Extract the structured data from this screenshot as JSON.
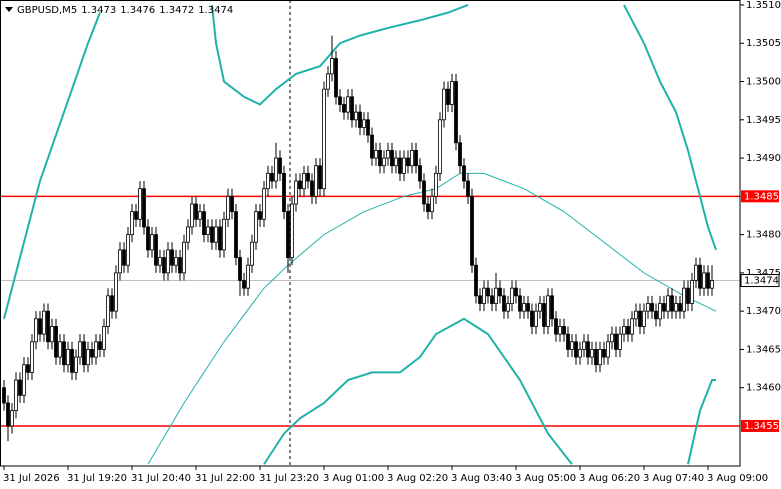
{
  "chart_data": {
    "type": "candlestick",
    "symbol": "GBPUSD,M5",
    "ohlc": [
      1.3473,
      1.3476,
      1.3472,
      1.3474
    ],
    "ylim": [
      1.344977,
      1.351065
    ],
    "yticks": [
      {
        "value": 1.351,
        "label": "1.3510"
      },
      1.3505,
      {
        "value": 1.35,
        "label": "1.3500"
      },
      1.3495,
      {
        "value": 1.349,
        "label": "1.3490"
      },
      {
        "value": 1.348,
        "label": "1.3480"
      },
      1.3475,
      {
        "value": 1.347,
        "label": "1.3470"
      },
      1.3465,
      {
        "value": 1.346,
        "label": "1.3460"
      }
    ],
    "hlines": [
      {
        "value": 1.3485,
        "color": "#ff0000"
      },
      {
        "value": 1.3455,
        "color": "#ff0000"
      }
    ],
    "bid": 1.3474,
    "categories": [
      "31 Jul 2026",
      null,
      null,
      null,
      null,
      null,
      null,
      null,
      null,
      null,
      null,
      null,
      null,
      null,
      null,
      null,
      "31 Jul 19:20",
      null,
      null,
      null,
      null,
      null,
      null,
      null,
      null,
      null,
      null,
      null,
      null,
      null,
      null,
      null,
      "31 Jul 20:40",
      null,
      null,
      null,
      null,
      null,
      null,
      null,
      null,
      null,
      null,
      null,
      null,
      null,
      null,
      null,
      "31 Jul 22:00",
      null,
      null,
      null,
      null,
      null,
      null,
      null,
      null,
      null,
      null,
      null,
      null,
      null,
      null,
      null,
      "31 Jul 23:20",
      null,
      null,
      null,
      null,
      null,
      null,
      null,
      null,
      null,
      null,
      null,
      null,
      null,
      null,
      null,
      "3 Aug 01:00",
      null,
      null,
      null,
      null,
      null,
      null,
      null,
      null,
      null,
      null,
      null,
      null,
      null,
      null,
      null,
      "3 Aug 02:20",
      null,
      null,
      null,
      null,
      null,
      null,
      null,
      null,
      null,
      null,
      null,
      null,
      null,
      null,
      null,
      "3 Aug 03:40",
      null,
      null,
      null,
      null,
      null,
      null,
      null,
      null,
      null,
      null,
      null,
      null,
      null,
      null,
      null,
      "3 Aug 05:00",
      null,
      null,
      null,
      null,
      null,
      null,
      null,
      null,
      null,
      null,
      null,
      null,
      null,
      null,
      null,
      "3 Aug 06:20",
      null,
      null,
      null,
      null,
      null,
      null,
      null,
      null,
      null,
      null,
      null,
      null,
      null,
      null,
      null,
      "3 Aug 07:40",
      null,
      null,
      null,
      null,
      null,
      null,
      null,
      null,
      null,
      null,
      null,
      null,
      null,
      null,
      null,
      "3 Aug 09:00",
      null
    ],
    "bull_color": "#ffffff",
    "bear_color": "#000000",
    "open": [
      1.346,
      1.3458,
      1.3455,
      1.3457,
      1.3461,
      1.3459,
      1.3463,
      1.3462,
      1.3466,
      1.3469,
      1.3467,
      1.347,
      1.3466,
      1.3468,
      1.3464,
      1.3466,
      1.3463,
      1.3465,
      1.3462,
      1.3464,
      1.3466,
      1.3463,
      1.3465,
      1.3464,
      1.3466,
      1.3465,
      1.3468,
      1.3472,
      1.347,
      1.3475,
      1.3478,
      1.3476,
      1.348,
      1.3483,
      1.3482,
      1.3486,
      1.3481,
      1.3478,
      1.348,
      1.3476,
      1.3477,
      1.3475,
      1.3478,
      1.3476,
      1.3477,
      1.3475,
      1.3479,
      1.3481,
      1.3484,
      1.3482,
      1.3483,
      1.348,
      1.3481,
      1.3479,
      1.3481,
      1.3478,
      1.3482,
      1.3485,
      1.3483,
      1.3477,
      1.3474,
      1.3473,
      1.3476,
      1.3479,
      1.3483,
      1.3482,
      1.3486,
      1.3488,
      1.3487,
      1.349,
      1.3488,
      1.3483,
      1.3477,
      1.3484,
      1.3487,
      1.3486,
      1.3488,
      1.3487,
      1.3485,
      1.3489,
      1.3486,
      1.3499,
      1.3501,
      1.3503,
      1.3498,
      1.3497,
      1.3496,
      1.3498,
      1.3495,
      1.3496,
      1.3494,
      1.3495,
      1.3493,
      1.349,
      1.3491,
      1.3489,
      1.349,
      1.3491,
      1.3489,
      1.349,
      1.3488,
      1.349,
      1.3489,
      1.3491,
      1.3489,
      1.3487,
      1.3484,
      1.3483,
      1.3485,
      1.3488,
      1.3495,
      1.3499,
      1.3497,
      1.35,
      1.3492,
      1.3489,
      1.3487,
      1.3485,
      1.3476,
      1.3472,
      1.3471,
      1.3473,
      1.3472,
      1.3471,
      1.3473,
      1.3472,
      1.347,
      1.3471,
      1.3473,
      1.3472,
      1.347,
      1.3471,
      1.347,
      1.3468,
      1.347,
      1.3471,
      1.3468,
      1.3472,
      1.3469,
      1.3467,
      1.3468,
      1.3467,
      1.3465,
      1.3466,
      1.3464,
      1.3465,
      1.3466,
      1.3464,
      1.3465,
      1.3463,
      1.3465,
      1.3464,
      1.3466,
      1.3467,
      1.3465,
      1.3467,
      1.3468,
      1.3467,
      1.3469,
      1.347,
      1.3468,
      1.347,
      1.3471,
      1.347,
      1.3469,
      1.3471,
      1.347,
      1.3472,
      1.347,
      1.3471,
      1.347,
      1.3473,
      1.3471,
      1.3474,
      1.3476,
      1.3473,
      1.3475,
      1.3473
    ],
    "high": [
      1.3461,
      1.3459,
      1.3458,
      1.3462,
      1.3462,
      1.3464,
      1.3464,
      1.3467,
      1.347,
      1.347,
      1.3471,
      1.3471,
      1.3469,
      1.3469,
      1.3467,
      1.3467,
      1.3466,
      1.3466,
      1.3465,
      1.3467,
      1.3467,
      1.3466,
      1.3466,
      1.3467,
      1.3467,
      1.3469,
      1.3473,
      1.3473,
      1.3476,
      1.3479,
      1.3479,
      1.3481,
      1.3484,
      1.3484,
      1.3487,
      1.3487,
      1.3482,
      1.3481,
      1.3481,
      1.3478,
      1.3478,
      1.3479,
      1.3479,
      1.3478,
      1.3478,
      1.348,
      1.3482,
      1.3485,
      1.3485,
      1.3484,
      1.3484,
      1.3482,
      1.3482,
      1.3482,
      1.3482,
      1.3483,
      1.3486,
      1.3486,
      1.3484,
      1.3478,
      1.3475,
      1.3477,
      1.348,
      1.3484,
      1.3484,
      1.3487,
      1.3489,
      1.3489,
      1.3492,
      1.3491,
      1.3489,
      1.3484,
      1.3485,
      1.3488,
      1.3488,
      1.3489,
      1.3489,
      1.3488,
      1.349,
      1.349,
      1.35,
      1.3502,
      1.3506,
      1.3504,
      1.3499,
      1.3498,
      1.3499,
      1.3499,
      1.3497,
      1.3497,
      1.3496,
      1.3496,
      1.3494,
      1.3492,
      1.3492,
      1.3491,
      1.3492,
      1.3492,
      1.3491,
      1.3491,
      1.3491,
      1.3491,
      1.3492,
      1.3492,
      1.349,
      1.3488,
      1.3485,
      1.3486,
      1.3489,
      1.3496,
      1.35,
      1.35,
      1.3501,
      1.3501,
      1.3493,
      1.349,
      1.3488,
      1.3486,
      1.3477,
      1.3473,
      1.3474,
      1.3474,
      1.3473,
      1.3475,
      1.3474,
      1.3473,
      1.3472,
      1.3474,
      1.3474,
      1.3473,
      1.3472,
      1.3472,
      1.3471,
      1.3471,
      1.3472,
      1.3472,
      1.3473,
      1.3473,
      1.347,
      1.3469,
      1.3469,
      1.3468,
      1.3467,
      1.3467,
      1.3466,
      1.3467,
      1.3467,
      1.3466,
      1.3466,
      1.3466,
      1.3466,
      1.3467,
      1.3468,
      1.3468,
      1.3468,
      1.3469,
      1.3469,
      1.347,
      1.3471,
      1.3471,
      1.3471,
      1.3472,
      1.3472,
      1.3471,
      1.3472,
      1.3472,
      1.3473,
      1.3473,
      1.3472,
      1.3472,
      1.3474,
      1.3474,
      1.3475,
      1.3477,
      1.3477,
      1.3476,
      1.3476,
      1.3476
    ],
    "low": [
      1.3457,
      1.3453,
      1.3454,
      1.3456,
      1.3458,
      1.3458,
      1.3461,
      1.3461,
      1.3465,
      1.3466,
      1.3466,
      1.3465,
      1.3465,
      1.3463,
      1.3463,
      1.3462,
      1.3462,
      1.3461,
      1.3461,
      1.3463,
      1.3462,
      1.3462,
      1.3463,
      1.3463,
      1.3464,
      1.3464,
      1.3467,
      1.3469,
      1.3469,
      1.3474,
      1.3475,
      1.3475,
      1.3479,
      1.3481,
      1.3481,
      1.348,
      1.3477,
      1.3477,
      1.3475,
      1.3475,
      1.3474,
      1.3474,
      1.3475,
      1.3475,
      1.3474,
      1.3474,
      1.3478,
      1.348,
      1.3481,
      1.3481,
      1.3479,
      1.3479,
      1.3478,
      1.3478,
      1.3477,
      1.3477,
      1.3481,
      1.3482,
      1.3476,
      1.3472,
      1.3472,
      1.3472,
      1.3475,
      1.3478,
      1.3481,
      1.3481,
      1.3485,
      1.3486,
      1.3486,
      1.3487,
      1.3482,
      1.3475,
      1.3476,
      1.3483,
      1.3485,
      1.3485,
      1.3486,
      1.3484,
      1.3484,
      1.3485,
      1.3485,
      1.3498,
      1.35,
      1.3497,
      1.3496,
      1.3495,
      1.3495,
      1.3494,
      1.3494,
      1.3493,
      1.3493,
      1.3492,
      1.3489,
      1.3489,
      1.3488,
      1.3488,
      1.3489,
      1.3488,
      1.3488,
      1.3487,
      1.3487,
      1.3488,
      1.3488,
      1.3488,
      1.3486,
      1.3483,
      1.3482,
      1.3482,
      1.3484,
      1.3487,
      1.3494,
      1.3496,
      1.3496,
      1.3491,
      1.3488,
      1.3486,
      1.3484,
      1.3475,
      1.3471,
      1.347,
      1.347,
      1.3471,
      1.347,
      1.347,
      1.3471,
      1.3469,
      1.3469,
      1.347,
      1.3471,
      1.3469,
      1.3469,
      1.3469,
      1.3467,
      1.3467,
      1.3469,
      1.3467,
      1.3467,
      1.3468,
      1.3466,
      1.3466,
      1.3466,
      1.3464,
      1.3464,
      1.3463,
      1.3463,
      1.3464,
      1.3463,
      1.3463,
      1.3462,
      1.3462,
      1.3463,
      1.3463,
      1.3465,
      1.3464,
      1.3464,
      1.3466,
      1.3466,
      1.3466,
      1.3468,
      1.3467,
      1.3467,
      1.3469,
      1.3469,
      1.3468,
      1.3468,
      1.3469,
      1.3469,
      1.3469,
      1.3469,
      1.3469,
      1.3469,
      1.347,
      1.347,
      1.3473,
      1.3472,
      1.3472,
      1.3472,
      1.3472
    ],
    "close": [
      1.3458,
      1.3455,
      1.3457,
      1.3461,
      1.3459,
      1.3463,
      1.3462,
      1.3466,
      1.3469,
      1.3467,
      1.347,
      1.3466,
      1.3468,
      1.3464,
      1.3466,
      1.3463,
      1.3465,
      1.3462,
      1.3464,
      1.3466,
      1.3463,
      1.3465,
      1.3464,
      1.3466,
      1.3465,
      1.3468,
      1.3472,
      1.347,
      1.3475,
      1.3478,
      1.3476,
      1.348,
      1.3483,
      1.3482,
      1.3486,
      1.3481,
      1.3478,
      1.348,
      1.3476,
      1.3477,
      1.3475,
      1.3478,
      1.3476,
      1.3477,
      1.3475,
      1.3479,
      1.3481,
      1.3484,
      1.3482,
      1.3483,
      1.348,
      1.3481,
      1.3479,
      1.3481,
      1.3478,
      1.3482,
      1.3485,
      1.3483,
      1.3477,
      1.3474,
      1.3473,
      1.3476,
      1.3479,
      1.3483,
      1.3482,
      1.3486,
      1.3488,
      1.3487,
      1.349,
      1.3488,
      1.3483,
      1.3477,
      1.3484,
      1.3487,
      1.3486,
      1.3488,
      1.3487,
      1.3485,
      1.3489,
      1.3486,
      1.3499,
      1.3501,
      1.3503,
      1.3498,
      1.3497,
      1.3496,
      1.3498,
      1.3495,
      1.3496,
      1.3494,
      1.3495,
      1.3493,
      1.349,
      1.3491,
      1.3489,
      1.349,
      1.3491,
      1.3489,
      1.349,
      1.3488,
      1.349,
      1.3489,
      1.3491,
      1.3489,
      1.3487,
      1.3484,
      1.3483,
      1.3485,
      1.3488,
      1.3495,
      1.3499,
      1.3497,
      1.35,
      1.3492,
      1.3489,
      1.3487,
      1.3485,
      1.3476,
      1.3472,
      1.3471,
      1.3473,
      1.3472,
      1.3471,
      1.3473,
      1.3472,
      1.347,
      1.3471,
      1.3473,
      1.3472,
      1.347,
      1.3471,
      1.347,
      1.3468,
      1.347,
      1.3471,
      1.3468,
      1.3472,
      1.3469,
      1.3467,
      1.3468,
      1.3467,
      1.3465,
      1.3466,
      1.3464,
      1.3465,
      1.3466,
      1.3464,
      1.3465,
      1.3463,
      1.3465,
      1.3464,
      1.3466,
      1.3467,
      1.3465,
      1.3467,
      1.3468,
      1.3467,
      1.3469,
      1.347,
      1.3468,
      1.347,
      1.3471,
      1.347,
      1.3469,
      1.3471,
      1.347,
      1.3472,
      1.347,
      1.3471,
      1.347,
      1.3473,
      1.3471,
      1.3474,
      1.3476,
      1.3473,
      1.3475,
      1.3473,
      1.3474
    ],
    "indicators": [
      {
        "color": "#20b2aa",
        "width": 2,
        "x": [
          0,
          5,
          9,
          13,
          17,
          21,
          24,
          26,
          52,
          53,
          55,
          60,
          64,
          68,
          73,
          79,
          84,
          89,
          96,
          104,
          111,
          116,
          120,
          155,
          157,
          160,
          164,
          168,
          171,
          174,
          176,
          178
        ],
        "values": [
          1.3469,
          1.3479,
          1.3487,
          1.3493,
          1.3499,
          1.3505,
          1.3509,
          null,
          1.351,
          1.3505,
          1.35,
          1.3498,
          1.3497,
          1.3499,
          1.3501,
          1.3502,
          1.3505,
          1.3506,
          1.3507,
          1.3508,
          1.3509,
          1.351,
          null,
          1.351,
          1.3508,
          1.3505,
          1.35,
          1.3496,
          1.3491,
          1.3485,
          1.3481,
          1.3478
        ]
      },
      {
        "color": "#20b2aa",
        "width": 1,
        "x": [
          36,
          45,
          55,
          65,
          71,
          80,
          90,
          100,
          108,
          114,
          120,
          130,
          140,
          150,
          160,
          170,
          178
        ],
        "values": [
          1.345,
          1.3458,
          1.3466,
          1.3473,
          1.3476,
          1.348,
          1.3483,
          1.3485,
          1.3486,
          1.3488,
          1.3488,
          1.3486,
          1.3483,
          1.3479,
          1.3475,
          1.3472,
          1.347
        ]
      },
      {
        "color": "#20b2aa",
        "width": 2,
        "x": [
          65,
          70,
          74,
          80,
          86,
          92,
          99,
          104,
          108,
          115,
          121,
          129,
          136,
          142,
          143,
          171,
          174,
          177,
          178
        ],
        "values": [
          1.345,
          1.3454,
          1.3456,
          1.3458,
          1.3461,
          1.3462,
          1.3462,
          1.3464,
          1.3467,
          1.3469,
          1.3467,
          1.3461,
          1.3454,
          1.345,
          null,
          1.345,
          1.3457,
          1.3461,
          1.3461
        ]
      }
    ]
  }
}
